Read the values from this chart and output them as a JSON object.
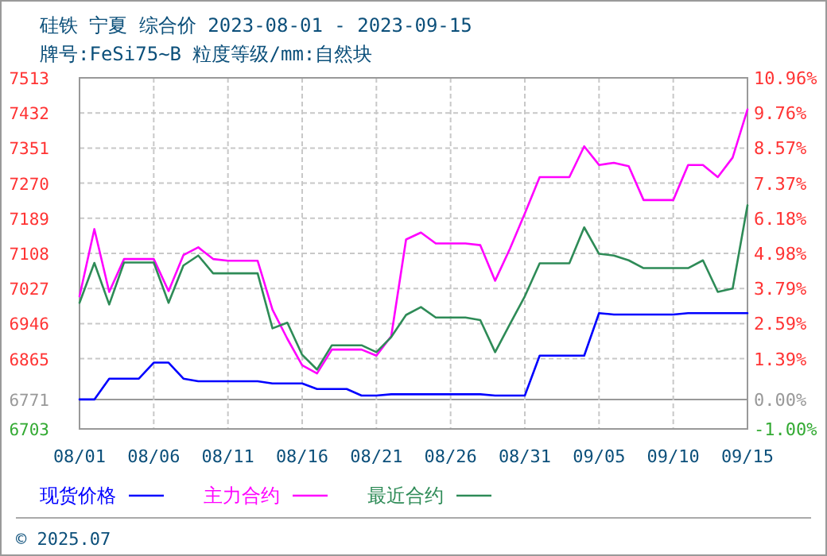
{
  "chart_data": {
    "type": "line",
    "title": "硅铁 宁夏 综合价 2023-08-01 - 2023-09-15",
    "subtitle": "牌号:FeSi75~B 粒度等级/mm:自然块",
    "x": [
      "2023-08-01",
      "2023-08-02",
      "2023-08-03",
      "2023-08-04",
      "2023-08-05",
      "2023-08-06",
      "2023-08-07",
      "2023-08-08",
      "2023-08-09",
      "2023-08-10",
      "2023-08-11",
      "2023-08-12",
      "2023-08-13",
      "2023-08-14",
      "2023-08-15",
      "2023-08-16",
      "2023-08-17",
      "2023-08-18",
      "2023-08-19",
      "2023-08-20",
      "2023-08-21",
      "2023-08-22",
      "2023-08-23",
      "2023-08-24",
      "2023-08-25",
      "2023-08-26",
      "2023-08-27",
      "2023-08-28",
      "2023-08-29",
      "2023-08-30",
      "2023-08-31",
      "2023-09-01",
      "2023-09-02",
      "2023-09-03",
      "2023-09-04",
      "2023-09-05",
      "2023-09-06",
      "2023-09-07",
      "2023-09-08",
      "2023-09-09",
      "2023-09-10",
      "2023-09-11",
      "2023-09-12",
      "2023-09-13",
      "2023-09-14",
      "2023-09-15"
    ],
    "series": [
      {
        "name": "现货价格",
        "color": "#0000ff",
        "values": [
          6771,
          6771,
          6819,
          6819,
          6819,
          6856,
          6856,
          6819,
          6813,
          6813,
          6813,
          6813,
          6813,
          6808,
          6808,
          6808,
          6795,
          6795,
          6795,
          6780,
          6780,
          6783,
          6783,
          6783,
          6783,
          6783,
          6783,
          6783,
          6780,
          6780,
          6780,
          6872,
          6872,
          6872,
          6872,
          6970,
          6967,
          6967,
          6967,
          6967,
          6967,
          6970,
          6970,
          6970,
          6970,
          6970
        ]
      },
      {
        "name": "主力合约",
        "color": "#ff00ff",
        "values": [
          7009,
          7164,
          7019,
          7095,
          7095,
          7095,
          7021,
          7104,
          7122,
          7095,
          7091,
          7091,
          7091,
          6978,
          6911,
          6850,
          6831,
          6886,
          6886,
          6886,
          6872,
          6917,
          7140,
          7156,
          7131,
          7131,
          7131,
          7127,
          7045,
          7119,
          7200,
          7284,
          7284,
          7284,
          7355,
          7312,
          7317,
          7309,
          7231,
          7231,
          7231,
          7312,
          7312,
          7284,
          7329,
          7440
        ]
      },
      {
        "name": "最近合约",
        "color": "#2e8b57",
        "values": [
          6994,
          7086,
          6990,
          7087,
          7087,
          7087,
          6994,
          7080,
          7103,
          7062,
          7062,
          7062,
          7062,
          6935,
          6948,
          6874,
          6840,
          6896,
          6896,
          6896,
          6880,
          6915,
          6966,
          6984,
          6960,
          6960,
          6960,
          6954,
          6880,
          6945,
          7009,
          7085,
          7085,
          7085,
          7168,
          7107,
          7103,
          7092,
          7074,
          7074,
          7074,
          7074,
          7092,
          7019,
          7027,
          7219
        ]
      }
    ],
    "xlim": [
      "2023-08-01",
      "2023-09-15"
    ],
    "xticks": [
      {
        "value": "2023-08-01",
        "label": "08/01"
      },
      {
        "value": "2023-08-06",
        "label": "08/06"
      },
      {
        "value": "2023-08-11",
        "label": "08/11"
      },
      {
        "value": "2023-08-16",
        "label": "08/16"
      },
      {
        "value": "2023-08-21",
        "label": "08/21"
      },
      {
        "value": "2023-08-26",
        "label": "08/26"
      },
      {
        "value": "2023-08-31",
        "label": "08/31"
      },
      {
        "value": "2023-09-05",
        "label": "09/05"
      },
      {
        "value": "2023-09-10",
        "label": "09/10"
      },
      {
        "value": "2023-09-15",
        "label": "09/15"
      }
    ],
    "ylim": [
      6703,
      7513
    ],
    "yticks": [
      6703,
      6771,
      6865,
      6946,
      7027,
      7108,
      7189,
      7270,
      7351,
      7432,
      7513
    ],
    "y2lim": [
      -1,
      10.96
    ],
    "y2ticks": [
      {
        "value": -1,
        "label": "-1.00%"
      },
      {
        "value": 0,
        "label": "0.00%"
      },
      {
        "value": 1.39,
        "label": "1.39%"
      },
      {
        "value": 2.59,
        "label": "2.59%"
      },
      {
        "value": 3.79,
        "label": "3.79%"
      },
      {
        "value": 4.98,
        "label": "4.98%"
      },
      {
        "value": 6.18,
        "label": "6.18%"
      },
      {
        "value": 7.37,
        "label": "7.37%"
      },
      {
        "value": 8.57,
        "label": "8.57%"
      },
      {
        "value": 9.76,
        "label": "9.76%"
      },
      {
        "value": 10.96,
        "label": "10.96%"
      }
    ],
    "grid": true,
    "legend": "bottom",
    "marker": "none",
    "line_style": "solid",
    "annotations": [
      "© 2025.07"
    ]
  }
}
